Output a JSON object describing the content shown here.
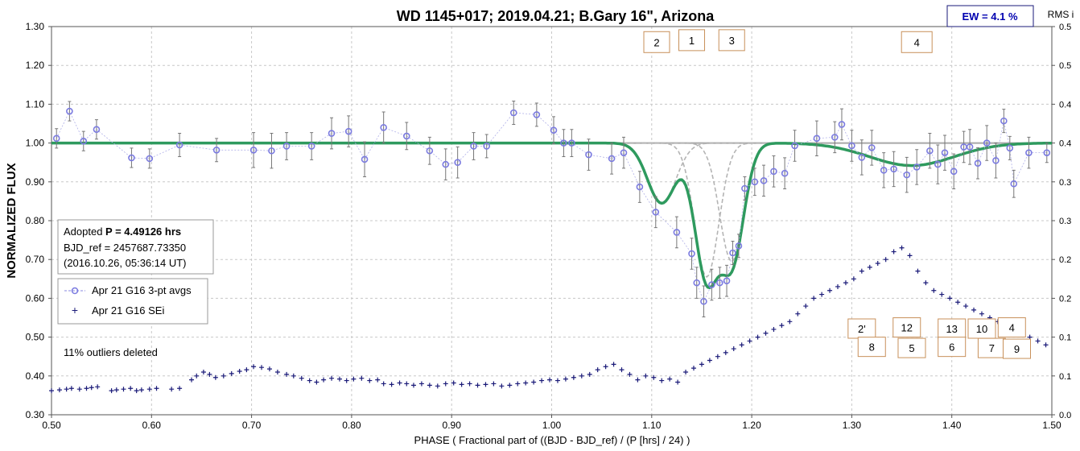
{
  "chart_data": {
    "type": "scatter",
    "title": "WD 1145+017; 2019.04.21; B.Gary 16\", Arizona",
    "xlabel": "PHASE ( Fractional part of ((BJD - BJD_ref) / (P [hrs] / 24) )",
    "ylabel": "NORMALIZED FLUX",
    "y2label": "RMS i",
    "xlim": [
      0.5,
      1.5
    ],
    "ylim": [
      0.3,
      1.3
    ],
    "y2lim": [
      0.0,
      0.5
    ],
    "x_ticks": [
      "0.50",
      "0.60",
      "0.70",
      "0.80",
      "0.90",
      "1.00",
      "1.10",
      "1.20",
      "1.30",
      "1.40",
      "1.50"
    ],
    "y_ticks": [
      "0.30",
      "0.40",
      "0.50",
      "0.60",
      "0.70",
      "0.80",
      "0.90",
      "1.00",
      "1.10",
      "1.20",
      "1.30"
    ],
    "y2_ticks": [
      "0.0",
      "0.1",
      "0.1",
      "0.2",
      "0.2",
      "0.3",
      "0.3",
      "0.4",
      "0.4",
      "0.5",
      "0.5"
    ],
    "grid": true,
    "ew_label": "EW =  4.1 %",
    "info_box": {
      "line1_prefix": "Adopted ",
      "line1_bold": "P = 4.49126 hrs",
      "line2": "BJD_ref = 2457687.73350",
      "line3": "(2016.10.26, 05:36:14 UT)"
    },
    "legend": {
      "placement": "left",
      "entries": [
        "Apr 21 G16 3-pt avgs",
        "Apr 21 G16 SEi"
      ]
    },
    "outliers_note": "11% outliers deleted",
    "dip_labels_top": [
      {
        "label": "2",
        "x": 1.105,
        "y": 1.26
      },
      {
        "label": "1",
        "x": 1.14,
        "y": 1.265
      },
      {
        "label": "3",
        "x": 1.18,
        "y": 1.265
      },
      {
        "label": "4",
        "x": 1.365,
        "y": 1.26
      }
    ],
    "dip_labels_bottom": [
      {
        "label": "2'",
        "x": 1.31,
        "y": 0.522
      },
      {
        "label": "12",
        "x": 1.355,
        "y": 0.525
      },
      {
        "label": "13",
        "x": 1.4,
        "y": 0.522
      },
      {
        "label": "10",
        "x": 1.43,
        "y": 0.522
      },
      {
        "label": "4",
        "x": 1.46,
        "y": 0.525
      },
      {
        "label": "8",
        "x": 1.32,
        "y": 0.475
      },
      {
        "label": "5",
        "x": 1.36,
        "y": 0.472
      },
      {
        "label": "6",
        "x": 1.4,
        "y": 0.475
      },
      {
        "label": "7",
        "x": 1.44,
        "y": 0.472
      },
      {
        "label": "9",
        "x": 1.465,
        "y": 0.47
      }
    ],
    "series": [
      {
        "name": "Apr 21 G16 3-pt avgs",
        "x": [
          0.505,
          0.518,
          0.532,
          0.545,
          0.58,
          0.598,
          0.628,
          0.665,
          0.702,
          0.72,
          0.735,
          0.76,
          0.78,
          0.797,
          0.813,
          0.832,
          0.855,
          0.878,
          0.894,
          0.906,
          0.922,
          0.935,
          0.962,
          0.985,
          1.002,
          1.012,
          1.02,
          1.037,
          1.06,
          1.072,
          1.088,
          1.104,
          1.125,
          1.14,
          1.145,
          1.152,
          1.16,
          1.168,
          1.175,
          1.181,
          1.187,
          1.193,
          1.203,
          1.212,
          1.222,
          1.233,
          1.243,
          1.265,
          1.283,
          1.29,
          1.3,
          1.31,
          1.32,
          1.332,
          1.342,
          1.355,
          1.365,
          1.378,
          1.386,
          1.393,
          1.402,
          1.412,
          1.418,
          1.426,
          1.435,
          1.444,
          1.452,
          1.458,
          1.462,
          1.477,
          1.495
        ],
        "y": [
          1.012,
          1.082,
          1.005,
          1.035,
          0.962,
          0.96,
          0.995,
          0.982,
          0.982,
          0.98,
          0.992,
          0.992,
          1.025,
          1.03,
          0.958,
          1.04,
          1.018,
          0.98,
          0.945,
          0.95,
          0.992,
          0.992,
          1.078,
          1.073,
          1.033,
          1.0,
          1.0,
          0.97,
          0.96,
          0.975,
          0.887,
          0.822,
          0.77,
          0.715,
          0.64,
          0.592,
          0.635,
          0.64,
          0.645,
          0.717,
          0.735,
          0.883,
          0.9,
          0.903,
          0.927,
          0.922,
          0.993,
          1.012,
          1.015,
          1.048,
          0.993,
          0.963,
          0.988,
          0.93,
          0.933,
          0.918,
          0.938,
          0.98,
          0.945,
          0.975,
          0.927,
          0.99,
          0.99,
          0.948,
          1.0,
          0.955,
          1.057,
          0.987,
          0.895,
          0.975,
          0.975
        ],
        "err": [
          0.025,
          0.025,
          0.025,
          0.025,
          0.025,
          0.025,
          0.03,
          0.03,
          0.045,
          0.045,
          0.035,
          0.035,
          0.04,
          0.04,
          0.045,
          0.04,
          0.035,
          0.035,
          0.04,
          0.04,
          0.035,
          0.03,
          0.03,
          0.03,
          0.035,
          0.035,
          0.035,
          0.04,
          0.04,
          0.04,
          0.04,
          0.04,
          0.04,
          0.04,
          0.04,
          0.04,
          0.04,
          0.04,
          0.04,
          0.03,
          0.03,
          0.03,
          0.035,
          0.04,
          0.04,
          0.04,
          0.04,
          0.045,
          0.04,
          0.04,
          0.04,
          0.045,
          0.045,
          0.045,
          0.045,
          0.045,
          0.045,
          0.045,
          0.05,
          0.045,
          0.045,
          0.04,
          0.045,
          0.04,
          0.045,
          0.045,
          0.03,
          0.03,
          0.035,
          0.04,
          0.025
        ]
      },
      {
        "name": "Apr 21 G16 SEi",
        "x": [
          0.5,
          0.508,
          0.515,
          0.52,
          0.528,
          0.535,
          0.54,
          0.546,
          0.56,
          0.565,
          0.572,
          0.579,
          0.585,
          0.59,
          0.598,
          0.605,
          0.62,
          0.628,
          0.64,
          0.645,
          0.652,
          0.658,
          0.664,
          0.672,
          0.68,
          0.688,
          0.695,
          0.702,
          0.71,
          0.718,
          0.726,
          0.735,
          0.742,
          0.75,
          0.758,
          0.765,
          0.772,
          0.78,
          0.788,
          0.795,
          0.802,
          0.81,
          0.818,
          0.826,
          0.832,
          0.84,
          0.848,
          0.855,
          0.862,
          0.87,
          0.878,
          0.886,
          0.894,
          0.902,
          0.91,
          0.918,
          0.926,
          0.934,
          0.942,
          0.95,
          0.958,
          0.966,
          0.974,
          0.982,
          0.99,
          0.998,
          1.006,
          1.014,
          1.022,
          1.03,
          1.038,
          1.046,
          1.054,
          1.062,
          1.07,
          1.078,
          1.086,
          1.094,
          1.102,
          1.11,
          1.118,
          1.126,
          1.134,
          1.142,
          1.15,
          1.158,
          1.166,
          1.174,
          1.182,
          1.19,
          1.198,
          1.206,
          1.214,
          1.222,
          1.23,
          1.238,
          1.246,
          1.254,
          1.262,
          1.27,
          1.278,
          1.286,
          1.294,
          1.302,
          1.31,
          1.318,
          1.326,
          1.334,
          1.342,
          1.35,
          1.358,
          1.366,
          1.374,
          1.382,
          1.39,
          1.398,
          1.406,
          1.414,
          1.422,
          1.43,
          1.438,
          1.446,
          1.454,
          1.462,
          1.47,
          1.478,
          1.486,
          1.494
        ],
        "y": [
          0.031,
          0.032,
          0.033,
          0.034,
          0.033,
          0.034,
          0.035,
          0.036,
          0.031,
          0.032,
          0.033,
          0.034,
          0.031,
          0.032,
          0.033,
          0.034,
          0.033,
          0.034,
          0.045,
          0.05,
          0.055,
          0.052,
          0.048,
          0.05,
          0.053,
          0.056,
          0.058,
          0.062,
          0.061,
          0.059,
          0.055,
          0.052,
          0.05,
          0.047,
          0.044,
          0.042,
          0.045,
          0.047,
          0.046,
          0.044,
          0.046,
          0.047,
          0.044,
          0.045,
          0.04,
          0.039,
          0.041,
          0.04,
          0.038,
          0.04,
          0.038,
          0.037,
          0.04,
          0.041,
          0.039,
          0.04,
          0.038,
          0.039,
          0.04,
          0.037,
          0.038,
          0.04,
          0.041,
          0.042,
          0.044,
          0.045,
          0.044,
          0.046,
          0.048,
          0.05,
          0.052,
          0.058,
          0.062,
          0.065,
          0.058,
          0.052,
          0.045,
          0.05,
          0.048,
          0.044,
          0.046,
          0.042,
          0.055,
          0.06,
          0.065,
          0.07,
          0.075,
          0.08,
          0.085,
          0.09,
          0.095,
          0.1,
          0.105,
          0.11,
          0.115,
          0.12,
          0.13,
          0.14,
          0.15,
          0.155,
          0.16,
          0.165,
          0.17,
          0.175,
          0.185,
          0.19,
          0.195,
          0.2,
          0.21,
          0.215,
          0.205,
          0.185,
          0.17,
          0.16,
          0.155,
          0.15,
          0.145,
          0.14,
          0.135,
          0.13,
          0.125,
          0.12,
          0.115,
          0.11,
          0.105,
          0.1,
          0.095,
          0.09
        ]
      }
    ],
    "model_components": [
      {
        "center": 1.11,
        "depth": 0.155,
        "width": 0.02
      },
      {
        "center": 1.155,
        "depth": 0.345,
        "width": 0.017
      },
      {
        "center": 1.18,
        "depth": 0.305,
        "width": 0.017
      },
      {
        "center": 1.36,
        "depth": 0.058,
        "width": 0.06
      }
    ],
    "colors": {
      "model_total": "#2e9a5e",
      "model_component": "#b4b4b4",
      "baseline": "#a8a8a8",
      "avg_points": "#7b7be0",
      "sei_points": "#1a1a78",
      "errorbar": "#777777",
      "label_box_border": "#c8905a",
      "ew_text": "#0000b0"
    }
  }
}
